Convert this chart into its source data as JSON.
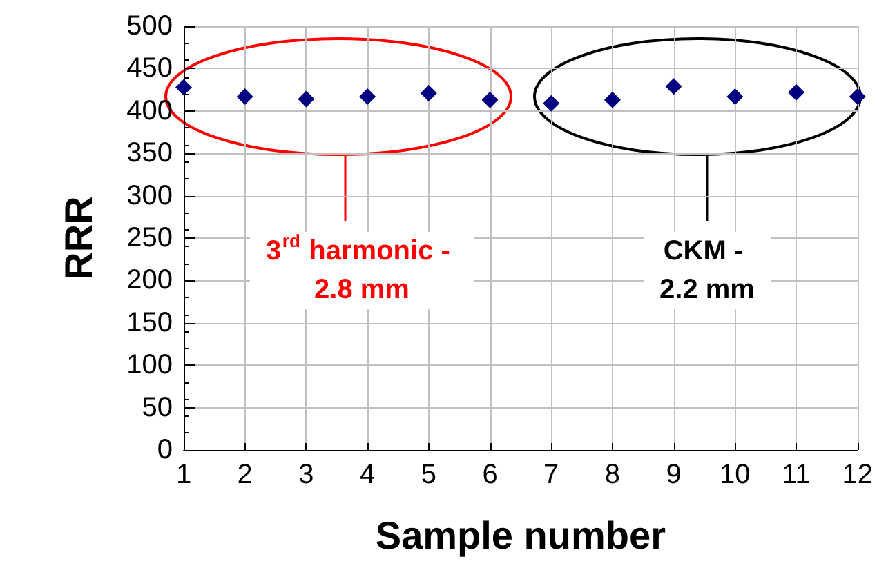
{
  "chart_data": {
    "type": "scatter",
    "xlabel": "Sample number",
    "ylabel": "RRR",
    "x": [
      1,
      2,
      3,
      4,
      5,
      6,
      7,
      8,
      9,
      10,
      11,
      12
    ],
    "series": [
      {
        "color": "#000080",
        "values": [
          428,
          417,
          414,
          417,
          421,
          413,
          409,
          413,
          429,
          417,
          422,
          417
        ]
      }
    ],
    "xlim": [
      1,
      12
    ],
    "xticks": [
      1,
      2,
      3,
      4,
      5,
      6,
      7,
      8,
      9,
      10,
      11,
      12
    ],
    "ylim": [
      0,
      500
    ],
    "yticks": [
      0,
      50,
      100,
      150,
      200,
      250,
      300,
      350,
      400,
      450,
      500
    ],
    "grid": true,
    "marker": "diamond",
    "annotations": [
      "3$^{rd}$ harmonic - 2.8 mm",
      "CKM - 2.2 mm"
    ]
  }
}
